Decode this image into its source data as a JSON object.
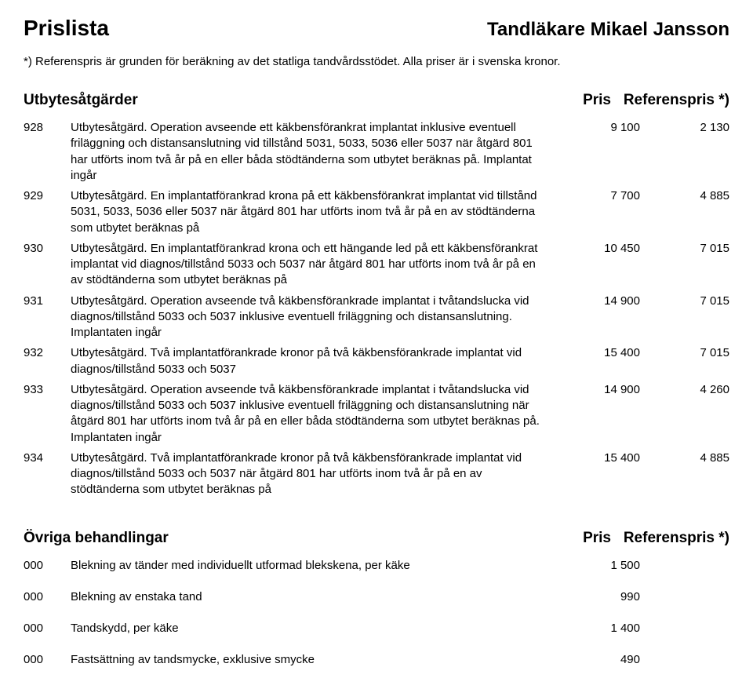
{
  "header": {
    "title": "Prislista",
    "subtitle": "Tandläkare Mikael Jansson",
    "note": "*) Referenspris är grunden för beräkning av det statliga tandvårdsstödet. Alla priser är i svenska kronor."
  },
  "section1": {
    "title": "Utbytesåtgärder",
    "price_header": "Pris",
    "ref_header": "Referenspris *)",
    "rows": [
      {
        "code": "928",
        "desc": "Utbytesåtgärd. Operation avseende ett käkbensförankrat implantat inklusive eventuell friläggning och distansanslutning vid tillstånd 5031, 5033, 5036 eller 5037 när åtgärd 801 har utförts inom två år på en eller båda stödtänderna som utbytet beräknas på. Implantat ingår",
        "price": "9 100",
        "ref": "2 130"
      },
      {
        "code": "929",
        "desc": "Utbytesåtgärd. En implantatförankrad krona på ett käkbensförankrat implantat vid tillstånd 5031, 5033, 5036 eller 5037 när åtgärd 801 har utförts inom två år på en av stödtänderna som utbytet beräknas på",
        "price": "7 700",
        "ref": "4 885"
      },
      {
        "code": "930",
        "desc": "Utbytesåtgärd. En implantatförankrad krona och ett hängande led på ett käkbensförankrat implantat vid diagnos/tillstånd 5033 och 5037 när åtgärd 801 har utförts inom två år på en av stödtänderna som utbytet beräknas på",
        "price": "10 450",
        "ref": "7 015"
      },
      {
        "code": "931",
        "desc": "Utbytesåtgärd. Operation avseende två käkbensförankrade implantat i tvåtandslucka vid diagnos/tillstånd 5033 och 5037 inklusive eventuell friläggning och distansanslutning. Implantaten ingår",
        "price": "14 900",
        "ref": "7 015"
      },
      {
        "code": "932",
        "desc": "Utbytesåtgärd. Två implantatförankrade kronor på två käkbensförankrade implantat vid diagnos/tillstånd 5033 och 5037",
        "price": "15 400",
        "ref": "7 015"
      },
      {
        "code": "933",
        "desc": "Utbytesåtgärd. Operation avseende två käkbensförankrade implantat i tvåtandslucka vid diagnos/tillstånd 5033 och 5037 inklusive eventuell friläggning och distansanslutning när åtgärd 801 har utförts inom två år på en eller båda stödtänderna som utbytet beräknas på. Implantaten ingår",
        "price": "14 900",
        "ref": "4 260"
      },
      {
        "code": "934",
        "desc": "Utbytesåtgärd. Två implantatförankrade kronor på två käkbensförankrade implantat vid diagnos/tillstånd 5033 och 5037 när åtgärd 801 har utförts inom två år på en av stödtänderna som utbytet beräknas på",
        "price": "15 400",
        "ref": "4 885"
      }
    ]
  },
  "section2": {
    "title": "Övriga behandlingar",
    "price_header": "Pris",
    "ref_header": "Referenspris *)",
    "rows": [
      {
        "code": "000",
        "desc": "Blekning av tänder med individuellt utformad blekskena, per käke",
        "price": "1 500",
        "ref": ""
      },
      {
        "code": "000",
        "desc": "Blekning av enstaka tand",
        "price": "990",
        "ref": ""
      },
      {
        "code": "000",
        "desc": "Tandskydd, per käke",
        "price": "1 400",
        "ref": ""
      },
      {
        "code": "000",
        "desc": "Fastsättning av tandsmycke, exklusive smycke",
        "price": "490",
        "ref": ""
      }
    ]
  },
  "style": {
    "text_color": "#000000",
    "background": "#ffffff",
    "title_fontsize": 28,
    "subtitle_fontsize": 24,
    "section_fontsize": 19,
    "body_fontsize": 15
  }
}
